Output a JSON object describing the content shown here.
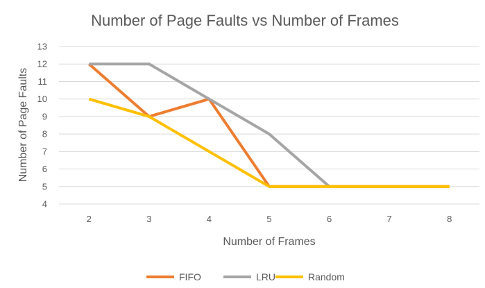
{
  "chart_data": {
    "type": "line",
    "title": "Number of Page Faults vs Number of Frames",
    "xlabel": "Number of Frames",
    "ylabel": "Number of Page Faults",
    "x": [
      2,
      3,
      4,
      5,
      6,
      7,
      8
    ],
    "ylim": [
      4,
      13
    ],
    "yticks": [
      4,
      5,
      6,
      7,
      8,
      9,
      10,
      11,
      12,
      13
    ],
    "grid": true,
    "legend_position": "bottom",
    "series": [
      {
        "name": "FIFO",
        "color": "#ED7D31",
        "x": [
          2,
          3,
          4,
          5,
          6,
          7,
          8
        ],
        "values": [
          12,
          9,
          10,
          5,
          5,
          5,
          5
        ]
      },
      {
        "name": "LRU",
        "color": "#A5A5A5",
        "x": [
          2,
          3,
          4,
          5,
          6
        ],
        "values": [
          12,
          12,
          10,
          8,
          5
        ]
      },
      {
        "name": "Random",
        "color": "#FFC000",
        "x": [
          2,
          3,
          4,
          5,
          6,
          7,
          8
        ],
        "values": [
          10,
          9,
          7,
          5,
          5,
          5,
          5
        ]
      }
    ]
  }
}
